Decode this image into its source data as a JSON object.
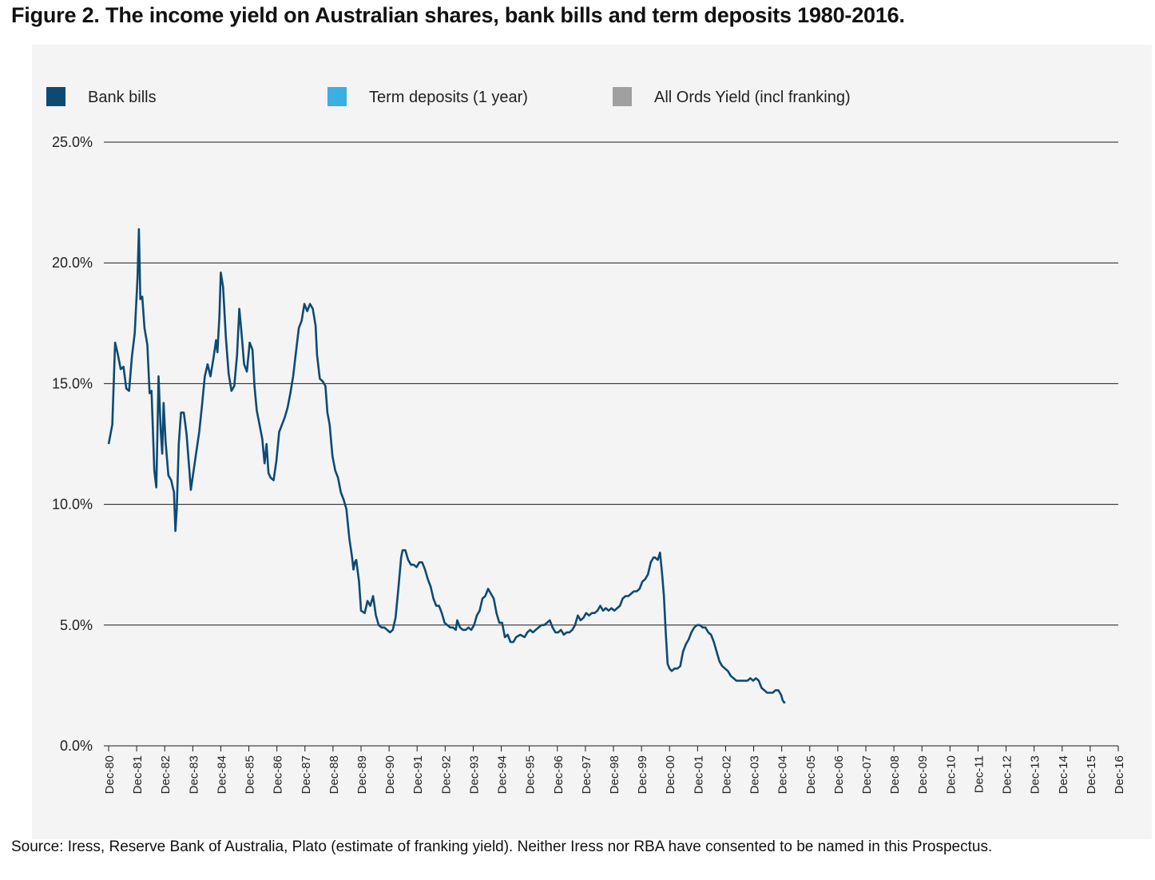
{
  "figure": {
    "title": "Figure 2. The income yield on Australian shares, bank bills and term deposits 1980-2016.",
    "source": "Source: Iress, Reserve Bank of Australia, Plato (estimate of franking yield). Neither Iress nor RBA have consented to be named in this Prospectus."
  },
  "colors": {
    "panel_background": "#f4f4f4",
    "gridline": "#1a1a1a",
    "bank_bills": "#0d4a73",
    "term_deposits": "#3ab0e2",
    "all_ords": "#a0a0a0"
  },
  "chart_data": {
    "type": "line",
    "title": "Figure 2. The income yield on Australian shares, bank bills and term deposits 1980-2016.",
    "xlabel": "",
    "ylabel": "",
    "ylim": [
      0,
      25
    ],
    "y_ticks": [
      0,
      5,
      10,
      15,
      20,
      25
    ],
    "y_tick_labels": [
      "0.0%",
      "5.0%",
      "10.0%",
      "15.0%",
      "20.0%",
      "25.0%"
    ],
    "grid": true,
    "legend_position": "top",
    "x_tick_labels": [
      "Dec-80",
      "Dec-81",
      "Dec-82",
      "Dec-83",
      "Dec-84",
      "Dec-85",
      "Dec-86",
      "Dec-87",
      "Dec-88",
      "Dec-89",
      "Dec-90",
      "Dec-91",
      "Dec-92",
      "Dec-93",
      "Dec-94",
      "Dec-95",
      "Dec-96",
      "Dec-97",
      "Dec-98",
      "Dec-99",
      "Dec-00",
      "Dec-01",
      "Dec-02",
      "Dec-03",
      "Dec-04",
      "Dec-05",
      "Dec-06",
      "Dec-07",
      "Dec-08",
      "Dec-09",
      "Dec-10",
      "Dec-11",
      "Dec-12",
      "Dec-13",
      "Dec-14",
      "Dec-15",
      "Dec-16"
    ],
    "x_ticks": [
      1980.92,
      1981.92,
      1982.92,
      1983.92,
      1984.92,
      1985.92,
      1986.92,
      1987.92,
      1988.92,
      1989.92,
      1990.92,
      1991.92,
      1992.92,
      1993.92,
      1994.92,
      1995.92,
      1996.92,
      1997.92,
      1998.92,
      1999.92,
      2000.92,
      2001.92,
      2002.92,
      2003.92,
      2004.92,
      2005.92,
      2006.92,
      2007.92,
      2008.92,
      2009.92,
      2010.92,
      2011.92,
      2012.92,
      2013.92,
      2014.92,
      2015.92,
      2016.92
    ],
    "xlim": [
      1980.92,
      2016.92
    ],
    "series": [
      {
        "name": "Bank bills",
        "color": "#0d4a73",
        "points": [
          [
            1980.92,
            12.5
          ],
          [
            1981.05,
            13.3
          ],
          [
            1981.15,
            16.7
          ],
          [
            1981.25,
            16.2
          ],
          [
            1981.35,
            15.6
          ],
          [
            1981.45,
            15.7
          ],
          [
            1981.55,
            14.8
          ],
          [
            1981.65,
            14.7
          ],
          [
            1981.75,
            16.1
          ],
          [
            1981.85,
            17.1
          ],
          [
            1981.95,
            19.4
          ],
          [
            1982.0,
            21.4
          ],
          [
            1982.05,
            18.5
          ],
          [
            1982.12,
            18.6
          ],
          [
            1982.2,
            17.3
          ],
          [
            1982.3,
            16.6
          ],
          [
            1982.38,
            14.6
          ],
          [
            1982.45,
            14.7
          ],
          [
            1982.55,
            11.4
          ],
          [
            1982.62,
            10.7
          ],
          [
            1982.7,
            15.3
          ],
          [
            1982.78,
            13.0
          ],
          [
            1982.83,
            12.1
          ],
          [
            1982.88,
            14.2
          ],
          [
            1982.95,
            12.6
          ],
          [
            1983.05,
            11.2
          ],
          [
            1983.15,
            11.0
          ],
          [
            1983.25,
            10.5
          ],
          [
            1983.3,
            8.9
          ],
          [
            1983.35,
            9.8
          ],
          [
            1983.42,
            12.5
          ],
          [
            1983.5,
            13.8
          ],
          [
            1983.6,
            13.8
          ],
          [
            1983.7,
            12.9
          ],
          [
            1983.8,
            11.4
          ],
          [
            1983.85,
            10.6
          ],
          [
            1983.95,
            11.4
          ],
          [
            1984.05,
            12.2
          ],
          [
            1984.15,
            13.0
          ],
          [
            1984.25,
            14.1
          ],
          [
            1984.35,
            15.3
          ],
          [
            1984.45,
            15.8
          ],
          [
            1984.55,
            15.3
          ],
          [
            1984.65,
            16.0
          ],
          [
            1984.75,
            16.8
          ],
          [
            1984.8,
            16.3
          ],
          [
            1984.87,
            17.8
          ],
          [
            1984.92,
            19.6
          ],
          [
            1985.0,
            19.0
          ],
          [
            1985.1,
            16.9
          ],
          [
            1985.2,
            15.4
          ],
          [
            1985.3,
            14.7
          ],
          [
            1985.4,
            14.9
          ],
          [
            1985.5,
            16.2
          ],
          [
            1985.58,
            18.1
          ],
          [
            1985.65,
            17.2
          ],
          [
            1985.75,
            15.8
          ],
          [
            1985.85,
            15.5
          ],
          [
            1985.95,
            16.7
          ],
          [
            1986.05,
            16.4
          ],
          [
            1986.12,
            14.9
          ],
          [
            1986.2,
            13.9
          ],
          [
            1986.3,
            13.3
          ],
          [
            1986.4,
            12.7
          ],
          [
            1986.48,
            11.7
          ],
          [
            1986.55,
            12.5
          ],
          [
            1986.62,
            11.3
          ],
          [
            1986.7,
            11.1
          ],
          [
            1986.8,
            11.0
          ],
          [
            1986.9,
            11.8
          ],
          [
            1987.0,
            13.0
          ],
          [
            1987.1,
            13.3
          ],
          [
            1987.2,
            13.6
          ],
          [
            1987.3,
            14.0
          ],
          [
            1987.4,
            14.6
          ],
          [
            1987.5,
            15.3
          ],
          [
            1987.6,
            16.3
          ],
          [
            1987.7,
            17.3
          ],
          [
            1987.8,
            17.6
          ],
          [
            1987.9,
            18.3
          ],
          [
            1988.0,
            18.0
          ],
          [
            1988.1,
            18.3
          ],
          [
            1988.2,
            18.1
          ],
          [
            1988.3,
            17.4
          ],
          [
            1988.35,
            16.2
          ],
          [
            1988.45,
            15.2
          ],
          [
            1988.55,
            15.1
          ],
          [
            1988.65,
            14.9
          ],
          [
            1988.72,
            13.8
          ],
          [
            1988.8,
            13.3
          ],
          [
            1988.9,
            12.0
          ],
          [
            1989.0,
            11.4
          ],
          [
            1989.1,
            11.1
          ],
          [
            1989.2,
            10.5
          ],
          [
            1989.3,
            10.2
          ],
          [
            1989.4,
            9.8
          ],
          [
            1989.5,
            8.6
          ],
          [
            1989.6,
            7.8
          ],
          [
            1989.65,
            7.3
          ],
          [
            1989.7,
            7.6
          ],
          [
            1989.75,
            7.7
          ],
          [
            1989.85,
            6.8
          ],
          [
            1989.92,
            5.6
          ],
          [
            1990.05,
            5.5
          ],
          [
            1990.15,
            6.0
          ],
          [
            1990.25,
            5.8
          ],
          [
            1990.35,
            6.2
          ],
          [
            1990.45,
            5.4
          ],
          [
            1990.55,
            5.0
          ],
          [
            1990.65,
            4.9
          ],
          [
            1990.75,
            4.9
          ],
          [
            1990.85,
            4.8
          ],
          [
            1990.95,
            4.7
          ],
          [
            1991.05,
            4.8
          ],
          [
            1991.15,
            5.3
          ],
          [
            1991.25,
            6.5
          ],
          [
            1991.35,
            7.8
          ],
          [
            1991.4,
            8.1
          ],
          [
            1991.5,
            8.1
          ],
          [
            1991.6,
            7.7
          ],
          [
            1991.7,
            7.5
          ],
          [
            1991.8,
            7.5
          ],
          [
            1991.9,
            7.4
          ],
          [
            1992.0,
            7.6
          ],
          [
            1992.1,
            7.6
          ],
          [
            1992.2,
            7.3
          ],
          [
            1992.3,
            6.9
          ],
          [
            1992.4,
            6.6
          ],
          [
            1992.5,
            6.1
          ],
          [
            1992.6,
            5.8
          ],
          [
            1992.7,
            5.8
          ],
          [
            1992.8,
            5.5
          ],
          [
            1992.9,
            5.1
          ],
          [
            1993.0,
            5.0
          ],
          [
            1993.1,
            4.9
          ],
          [
            1993.2,
            4.9
          ],
          [
            1993.3,
            4.8
          ],
          [
            1993.35,
            5.2
          ],
          [
            1993.45,
            4.9
          ],
          [
            1993.55,
            4.8
          ],
          [
            1993.65,
            4.8
          ],
          [
            1993.75,
            4.9
          ],
          [
            1993.85,
            4.8
          ],
          [
            1993.95,
            5.0
          ],
          [
            1994.05,
            5.4
          ],
          [
            1994.15,
            5.6
          ],
          [
            1994.25,
            6.1
          ],
          [
            1994.35,
            6.2
          ],
          [
            1994.45,
            6.5
          ],
          [
            1994.55,
            6.3
          ],
          [
            1994.65,
            6.1
          ],
          [
            1994.75,
            5.5
          ],
          [
            1994.85,
            5.1
          ],
          [
            1994.95,
            5.1
          ],
          [
            1995.05,
            4.5
          ],
          [
            1995.15,
            4.6
          ],
          [
            1995.25,
            4.3
          ],
          [
            1995.35,
            4.3
          ],
          [
            1995.45,
            4.5
          ],
          [
            1995.6,
            4.6
          ],
          [
            1995.75,
            4.5
          ],
          [
            1995.85,
            4.7
          ],
          [
            1995.95,
            4.8
          ],
          [
            1996.05,
            4.7
          ],
          [
            1996.15,
            4.8
          ],
          [
            1996.25,
            4.9
          ],
          [
            1996.35,
            5.0
          ],
          [
            1996.45,
            5.0
          ],
          [
            1996.55,
            5.1
          ],
          [
            1996.65,
            5.2
          ],
          [
            1996.75,
            4.9
          ],
          [
            1996.85,
            4.7
          ],
          [
            1996.95,
            4.7
          ],
          [
            1997.05,
            4.8
          ],
          [
            1997.15,
            4.6
          ],
          [
            1997.25,
            4.7
          ],
          [
            1997.35,
            4.7
          ],
          [
            1997.45,
            4.8
          ],
          [
            1997.55,
            5.0
          ],
          [
            1997.65,
            5.4
          ],
          [
            1997.75,
            5.2
          ],
          [
            1997.85,
            5.3
          ],
          [
            1997.95,
            5.5
          ],
          [
            1998.05,
            5.4
          ],
          [
            1998.15,
            5.5
          ],
          [
            1998.25,
            5.5
          ],
          [
            1998.35,
            5.6
          ],
          [
            1998.45,
            5.8
          ],
          [
            1998.55,
            5.6
          ],
          [
            1998.65,
            5.7
          ],
          [
            1998.75,
            5.6
          ],
          [
            1998.85,
            5.7
          ],
          [
            1998.95,
            5.6
          ],
          [
            1999.05,
            5.7
          ],
          [
            1999.15,
            5.8
          ],
          [
            1999.25,
            6.1
          ],
          [
            1999.35,
            6.2
          ],
          [
            1999.45,
            6.2
          ],
          [
            1999.55,
            6.3
          ],
          [
            1999.65,
            6.4
          ],
          [
            1999.75,
            6.4
          ],
          [
            1999.85,
            6.5
          ],
          [
            1999.95,
            6.8
          ],
          [
            2000.05,
            6.9
          ],
          [
            2000.15,
            7.1
          ],
          [
            2000.25,
            7.6
          ],
          [
            2000.35,
            7.8
          ],
          [
            2000.4,
            7.8
          ],
          [
            2000.5,
            7.7
          ],
          [
            2000.58,
            8.0
          ],
          [
            2000.65,
            7.2
          ],
          [
            2000.72,
            6.2
          ],
          [
            2000.78,
            4.8
          ],
          [
            2000.85,
            3.4
          ],
          [
            2000.92,
            3.2
          ],
          [
            2001.0,
            3.1
          ],
          [
            2001.1,
            3.2
          ],
          [
            2001.2,
            3.2
          ],
          [
            2001.3,
            3.3
          ],
          [
            2001.4,
            3.9
          ],
          [
            2001.5,
            4.2
          ],
          [
            2001.6,
            4.4
          ],
          [
            2001.7,
            4.7
          ],
          [
            2001.8,
            4.9
          ],
          [
            2001.9,
            5.0
          ],
          [
            2002.0,
            5.0
          ],
          [
            2002.1,
            4.9
          ],
          [
            2002.2,
            4.9
          ],
          [
            2002.3,
            4.7
          ],
          [
            2002.4,
            4.6
          ],
          [
            2002.5,
            4.3
          ],
          [
            2002.6,
            3.9
          ],
          [
            2002.7,
            3.5
          ],
          [
            2002.8,
            3.3
          ],
          [
            2002.9,
            3.2
          ],
          [
            2003.0,
            3.1
          ],
          [
            2003.1,
            2.9
          ],
          [
            2003.2,
            2.8
          ],
          [
            2003.3,
            2.7
          ],
          [
            2003.4,
            2.7
          ],
          [
            2003.5,
            2.7
          ],
          [
            2003.6,
            2.7
          ],
          [
            2003.7,
            2.7
          ],
          [
            2003.8,
            2.8
          ],
          [
            2003.9,
            2.7
          ],
          [
            2004.0,
            2.8
          ],
          [
            2004.1,
            2.7
          ],
          [
            2004.2,
            2.4
          ],
          [
            2004.3,
            2.3
          ],
          [
            2004.4,
            2.2
          ],
          [
            2004.5,
            2.2
          ],
          [
            2004.6,
            2.2
          ],
          [
            2004.7,
            2.3
          ],
          [
            2004.8,
            2.3
          ],
          [
            2004.9,
            2.1
          ],
          [
            2004.95,
            1.9
          ],
          [
            2005.0,
            1.8
          ],
          [
            2005.05,
            1.8
          ]
        ],
        "x_offset_note": ""
      }
    ]
  }
}
